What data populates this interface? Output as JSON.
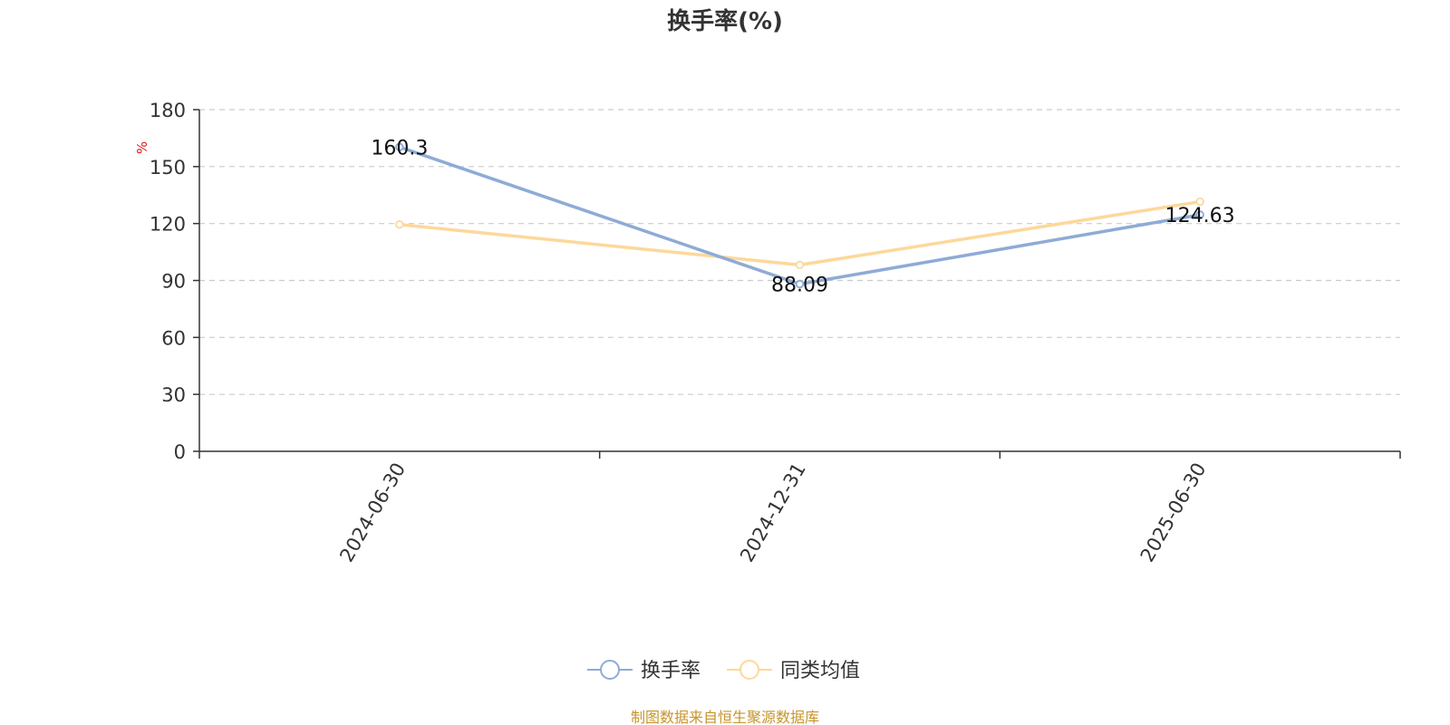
{
  "chart_data": {
    "type": "line",
    "title": "换手率(%)",
    "ylabel": "%",
    "xlabel": "",
    "categories": [
      "2024-06-30",
      "2024-12-31",
      "2025-06-30"
    ],
    "ylim": [
      0,
      180
    ],
    "yticks": [
      0,
      30,
      60,
      90,
      120,
      150,
      180
    ],
    "grid": true,
    "legend_position": "bottom",
    "series": [
      {
        "name": "换手率",
        "values": [
          160.3,
          88.09,
          124.63
        ],
        "color": "#8eabd6",
        "labels": [
          "160.3",
          "88.09",
          "124.63"
        ]
      },
      {
        "name": "同类均值",
        "values": [
          119.5,
          98.2,
          131.5
        ],
        "color": "#fdd89b"
      }
    ]
  },
  "source": "制图数据来自恒生聚源数据库"
}
